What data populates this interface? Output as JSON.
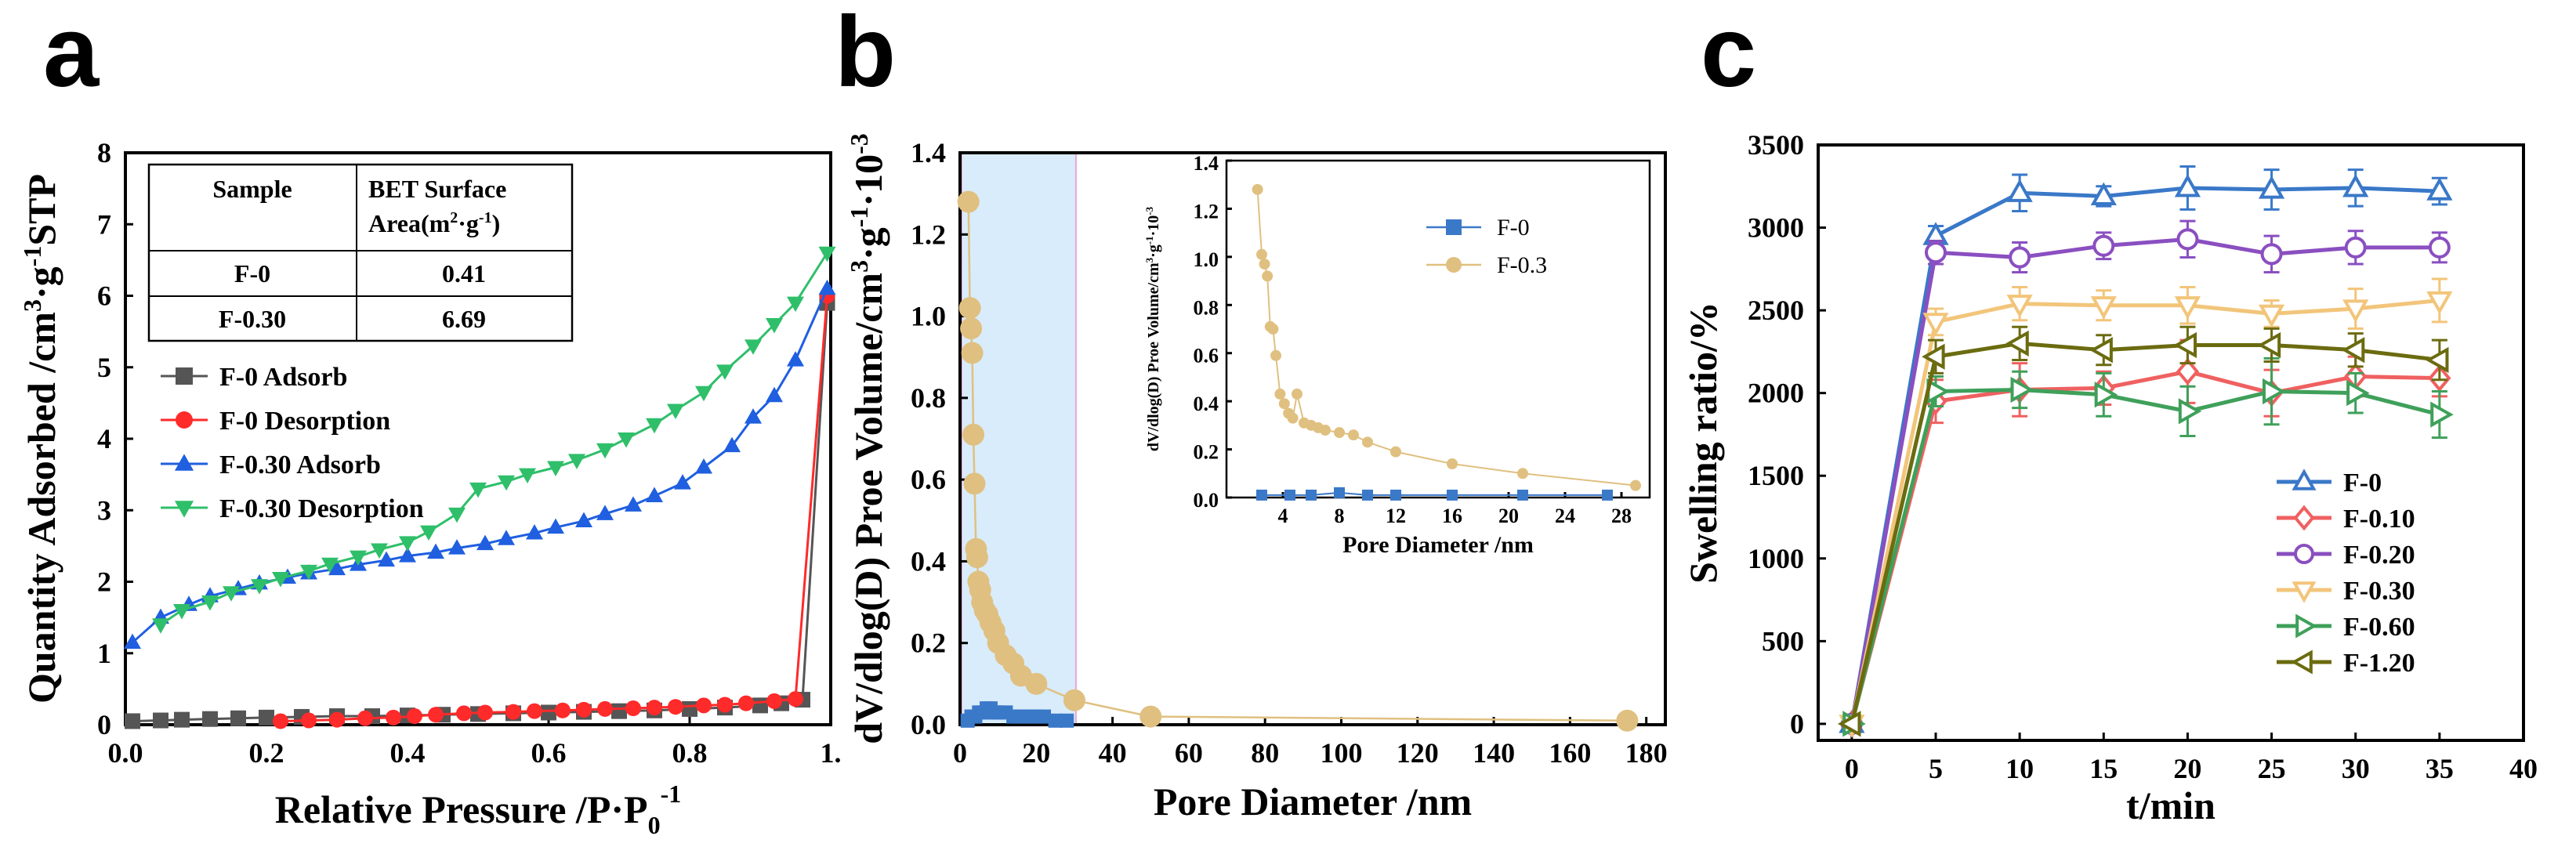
{
  "chart_data": [
    {
      "type": "line",
      "panel": "a",
      "xlabel": "Relative Pressure /P·P",
      "xlabel_sub": "0",
      "xlabel_sup": "-1",
      "ylabel": "Quantity Adsorbed /cm",
      "ylabel_sup1": "3",
      "ylabel_mid": "·g",
      "ylabel_sup2": "-1",
      "ylabel_end": "STP",
      "xlim": [
        0,
        1.0
      ],
      "ylim": [
        0,
        8
      ],
      "xticks": [
        "0.0",
        "0.2",
        "0.4",
        "0.6",
        "0.8",
        "1."
      ],
      "yticks": [
        "0",
        "1",
        "2",
        "3",
        "4",
        "5",
        "6",
        "7",
        "8"
      ],
      "table": {
        "header_left": "Sample",
        "header_right_line1": "BET Surface",
        "header_right_line2": "Area(",
        "header_unit": "m",
        "header_sup1": "2",
        "header_mid": "·g",
        "header_sup2": "-1",
        "header_close": ")",
        "rows": [
          {
            "sample": "F-0",
            "value": "0.41"
          },
          {
            "sample": "F-0.30",
            "value": "6.69"
          }
        ]
      },
      "series": [
        {
          "name": "F-0      Adsorb",
          "color": "#555555",
          "marker": "square",
          "x": [
            0.01,
            0.05,
            0.08,
            0.12,
            0.16,
            0.2,
            0.25,
            0.3,
            0.35,
            0.4,
            0.45,
            0.5,
            0.55,
            0.6,
            0.65,
            0.7,
            0.75,
            0.8,
            0.85,
            0.9,
            0.93,
            0.96,
            0.995
          ],
          "y": [
            0.05,
            0.06,
            0.07,
            0.08,
            0.09,
            0.1,
            0.11,
            0.12,
            0.12,
            0.13,
            0.14,
            0.15,
            0.16,
            0.17,
            0.18,
            0.19,
            0.2,
            0.22,
            0.24,
            0.27,
            0.3,
            0.35,
            5.9
          ]
        },
        {
          "name": "F-0      Desorption",
          "color": "#ff2a2a",
          "marker": "circle",
          "x": [
            0.22,
            0.26,
            0.3,
            0.34,
            0.38,
            0.41,
            0.44,
            0.48,
            0.51,
            0.55,
            0.58,
            0.62,
            0.65,
            0.68,
            0.72,
            0.75,
            0.78,
            0.82,
            0.85,
            0.88,
            0.92,
            0.95,
            0.995
          ],
          "y": [
            0.05,
            0.06,
            0.07,
            0.09,
            0.1,
            0.12,
            0.14,
            0.16,
            0.17,
            0.18,
            0.19,
            0.2,
            0.21,
            0.22,
            0.23,
            0.24,
            0.25,
            0.27,
            0.28,
            0.3,
            0.33,
            0.36,
            6.0
          ]
        },
        {
          "name": "F-0.30 Adsorb",
          "color": "#1f5fe0",
          "marker": "triangle-up",
          "x": [
            0.01,
            0.05,
            0.09,
            0.12,
            0.16,
            0.19,
            0.23,
            0.26,
            0.3,
            0.33,
            0.37,
            0.4,
            0.44,
            0.47,
            0.51,
            0.54,
            0.58,
            0.61,
            0.65,
            0.68,
            0.72,
            0.75,
            0.79,
            0.82,
            0.86,
            0.89,
            0.92,
            0.95,
            0.995
          ],
          "y": [
            1.15,
            1.5,
            1.68,
            1.8,
            1.9,
            1.98,
            2.06,
            2.12,
            2.18,
            2.24,
            2.3,
            2.36,
            2.41,
            2.47,
            2.53,
            2.6,
            2.68,
            2.76,
            2.85,
            2.95,
            3.07,
            3.2,
            3.38,
            3.6,
            3.9,
            4.3,
            4.6,
            5.1,
            6.1
          ]
        },
        {
          "name": "F-0.30 Desorption",
          "color": "#2fbf6a",
          "marker": "triangle-down",
          "x": [
            0.05,
            0.08,
            0.12,
            0.15,
            0.19,
            0.22,
            0.26,
            0.29,
            0.33,
            0.36,
            0.4,
            0.43,
            0.47,
            0.5,
            0.54,
            0.57,
            0.61,
            0.64,
            0.68,
            0.71,
            0.75,
            0.78,
            0.82,
            0.85,
            0.89,
            0.92,
            0.95,
            0.995
          ],
          "y": [
            1.4,
            1.6,
            1.72,
            1.85,
            1.95,
            2.05,
            2.15,
            2.25,
            2.35,
            2.45,
            2.55,
            2.7,
            2.95,
            3.3,
            3.4,
            3.5,
            3.6,
            3.7,
            3.85,
            4.0,
            4.2,
            4.4,
            4.65,
            4.95,
            5.3,
            5.6,
            5.9,
            6.6
          ]
        }
      ],
      "legend_position": "middle-left"
    },
    {
      "type": "scatter",
      "panel": "b",
      "xlabel": "Pore Diameter /nm",
      "ylabel": "dV/dlog(D) Proe Volume/cm",
      "ylabel_sup1": "3",
      "ylabel_mid": "·g",
      "ylabel_sup2": "-1",
      "ylabel_end": "·10",
      "ylabel_sup3": "-3",
      "xlim": [
        0,
        185
      ],
      "ylim": [
        0,
        1.4
      ],
      "xticks": [
        "0",
        "20",
        "40",
        "60",
        "80",
        "100",
        "120",
        "140",
        "160",
        "180"
      ],
      "yticks": [
        "0.0",
        "0.2",
        "0.4",
        "0.6",
        "0.8",
        "1.0",
        "1.2",
        "1.4"
      ],
      "highlight_range": [
        0,
        30
      ],
      "series": [
        {
          "name": "F-0",
          "color": "#3a78c8",
          "marker": "square",
          "x": [
            2,
            3,
            4,
            5,
            6,
            7,
            8,
            9,
            10,
            12,
            14,
            16,
            18,
            20,
            22,
            25,
            28
          ],
          "y": [
            0.01,
            0.02,
            0.02,
            0.03,
            0.03,
            0.04,
            0.04,
            0.03,
            0.03,
            0.03,
            0.02,
            0.02,
            0.02,
            0.02,
            0.02,
            0.01,
            0.01
          ]
        },
        {
          "name": "F-0.3",
          "color": "#e0c080",
          "marker": "circle",
          "x": [
            2.2,
            2.6,
            2.9,
            3.2,
            3.5,
            3.8,
            4.2,
            4.5,
            4.8,
            5.3,
            5.8,
            6.5,
            7.2,
            8,
            9,
            10,
            12,
            14,
            16,
            20,
            30,
            50,
            175
          ],
          "y": [
            1.28,
            1.02,
            0.97,
            0.91,
            0.71,
            0.59,
            0.43,
            0.41,
            0.35,
            0.33,
            0.3,
            0.28,
            0.27,
            0.25,
            0.23,
            0.2,
            0.17,
            0.15,
            0.12,
            0.1,
            0.06,
            0.02,
            0.01
          ]
        }
      ],
      "inset": {
        "xlabel": "Pore Diameter /nm",
        "ylabel": "dV/dlog(D) Proe Volume/cm",
        "ylabel_sup1": "3",
        "ylabel_mid": "·g",
        "ylabel_sup2": "-1",
        "ylabel_end": "·10",
        "ylabel_sup3": "-3",
        "xlim": [
          0,
          30
        ],
        "ylim": [
          0,
          1.4
        ],
        "xticks": [
          "4",
          "8",
          "12",
          "16",
          "20",
          "24",
          "28"
        ],
        "yticks": [
          "0.0",
          "0.2",
          "0.4",
          "0.6",
          "0.8",
          "1.0",
          "1.2",
          "1.4"
        ],
        "series": [
          {
            "name": "F-0",
            "color": "#3a78c8",
            "marker": "square",
            "x": [
              2.5,
              4.5,
              6,
              8,
              10,
              12,
              16,
              21,
              27
            ],
            "y": [
              0.01,
              0.01,
              0.01,
              0.02,
              0.01,
              0.01,
              0.01,
              0.01,
              0.01
            ]
          },
          {
            "name": "F-0.3",
            "color": "#e0c080",
            "marker": "circle",
            "x": [
              2.2,
              2.5,
              2.7,
              2.9,
              3.1,
              3.3,
              3.5,
              3.8,
              4.1,
              4.4,
              4.7,
              5.0,
              5.5,
              6,
              6.5,
              7,
              8,
              9,
              10,
              12,
              16,
              21,
              29
            ],
            "y": [
              1.28,
              1.01,
              0.97,
              0.92,
              0.71,
              0.7,
              0.59,
              0.43,
              0.39,
              0.35,
              0.33,
              0.43,
              0.31,
              0.3,
              0.29,
              0.28,
              0.27,
              0.26,
              0.23,
              0.19,
              0.14,
              0.1,
              0.05
            ]
          }
        ],
        "legend_position": "top-right"
      }
    },
    {
      "type": "line",
      "panel": "c",
      "xlabel": "t/min",
      "ylabel": "Swelling ratio/%",
      "xlim": [
        -2,
        40
      ],
      "ylim": [
        -100,
        3500
      ],
      "xticks": [
        "0",
        "5",
        "10",
        "15",
        "20",
        "25",
        "30",
        "35",
        "40"
      ],
      "yticks": [
        "0",
        "500",
        "1000",
        "1500",
        "2000",
        "2500",
        "3000",
        "3500"
      ],
      "x": [
        0,
        5,
        10,
        15,
        20,
        25,
        30,
        35
      ],
      "series": [
        {
          "name": "F-0",
          "color": "#3a78c8",
          "marker": "triangle-up",
          "values": [
            0,
            2950,
            3210,
            3190,
            3240,
            3230,
            3240,
            3220
          ],
          "err": [
            0,
            60,
            110,
            60,
            130,
            120,
            110,
            80
          ]
        },
        {
          "name": "F-0.10",
          "color": "#f06060",
          "marker": "diamond",
          "values": [
            0,
            1950,
            2020,
            2030,
            2130,
            2000,
            2100,
            2090
          ],
          "err": [
            0,
            130,
            160,
            100,
            190,
            140,
            120,
            110
          ]
        },
        {
          "name": "F-0.20",
          "color": "#8a4fc0",
          "marker": "circle",
          "values": [
            0,
            2850,
            2820,
            2890,
            2930,
            2840,
            2880,
            2880
          ],
          "err": [
            0,
            70,
            90,
            80,
            110,
            110,
            100,
            90
          ]
        },
        {
          "name": "F-0.30",
          "color": "#f2c57a",
          "marker": "triangle-down",
          "values": [
            0,
            2430,
            2540,
            2530,
            2530,
            2480,
            2510,
            2560
          ],
          "err": [
            0,
            80,
            100,
            90,
            110,
            80,
            120,
            130
          ]
        },
        {
          "name": "F-0.60",
          "color": "#3fa05a",
          "marker": "triangle-right",
          "values": [
            0,
            2010,
            2020,
            1990,
            1890,
            2010,
            2000,
            1870
          ],
          "err": [
            0,
            90,
            110,
            130,
            150,
            200,
            120,
            140
          ]
        },
        {
          "name": "F-1.20",
          "color": "#6b6b10",
          "marker": "triangle-left",
          "values": [
            0,
            2220,
            2300,
            2260,
            2290,
            2290,
            2260,
            2200
          ],
          "err": [
            0,
            100,
            100,
            90,
            110,
            100,
            100,
            120
          ]
        }
      ],
      "legend_position": "bottom-right"
    }
  ],
  "panel_labels": [
    "a",
    "b",
    "c"
  ]
}
